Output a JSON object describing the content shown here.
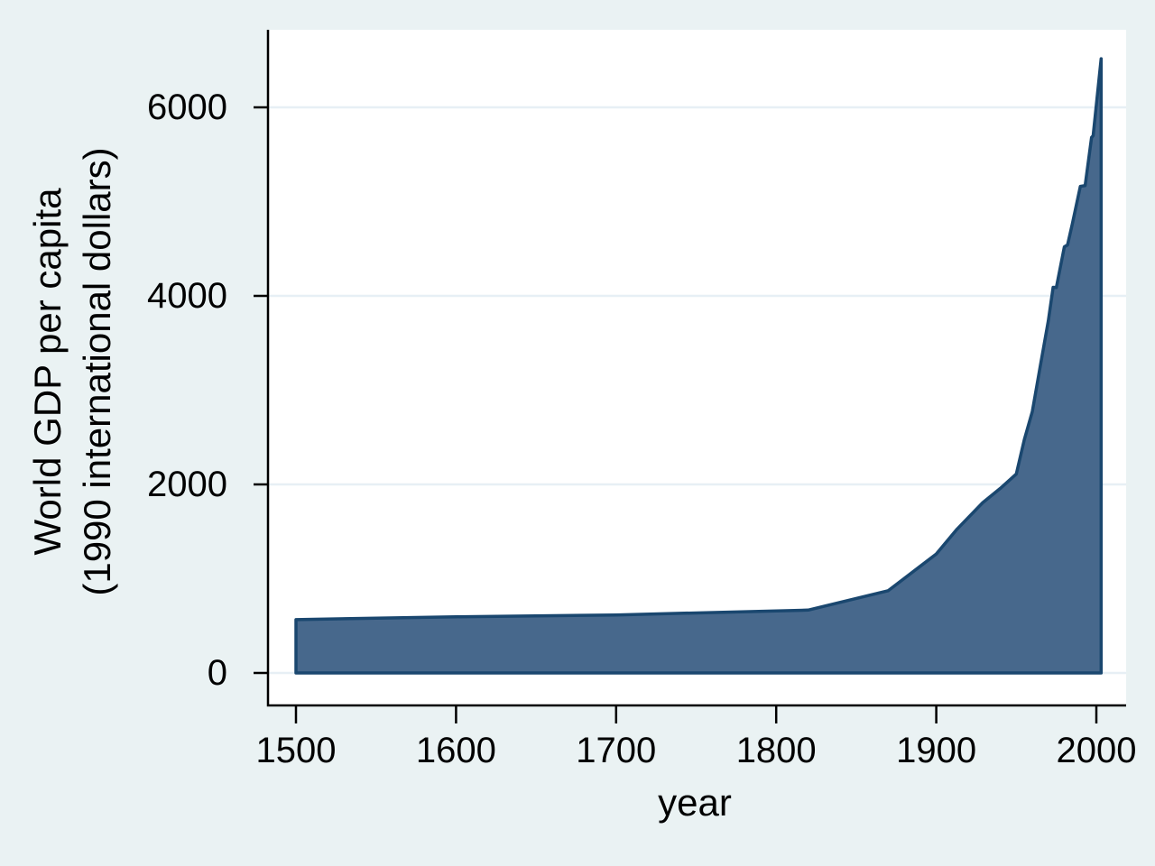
{
  "style": {
    "background": "#eaf2f3",
    "plot_background": "#ffffff",
    "gridline": "#e7eff5",
    "axis_color": "#000000",
    "text_color": "#000000",
    "area_fill": "#47688c",
    "area_stroke": "#1a476f"
  },
  "chart_data": {
    "type": "area",
    "title": "",
    "xlabel": "year",
    "ylabel": [
      "World GDP per capita",
      "(1990 international dollars)"
    ],
    "xticks": [
      1500,
      1600,
      1700,
      1800,
      1900,
      2000
    ],
    "yticks": [
      0,
      2000,
      4000,
      6000
    ],
    "xlim": [
      1483,
      2018
    ],
    "ylim": [
      -345,
      6820
    ],
    "grid": "horizontal-gridlines-only",
    "legend": "none",
    "baseline": 0,
    "series": [
      {
        "name": "World GDP per capita (1990 international dollars)",
        "points": [
          [
            1500,
            566
          ],
          [
            1600,
            596
          ],
          [
            1700,
            615
          ],
          [
            1820,
            667
          ],
          [
            1870,
            873
          ],
          [
            1900,
            1262
          ],
          [
            1913,
            1526
          ],
          [
            1929,
            1806
          ],
          [
            1940,
            1958
          ],
          [
            1950,
            2111
          ],
          [
            1955,
            2475
          ],
          [
            1960,
            2773
          ],
          [
            1965,
            3258
          ],
          [
            1970,
            3736
          ],
          [
            1973,
            4091
          ],
          [
            1975,
            4088
          ],
          [
            1980,
            4520
          ],
          [
            1982,
            4540
          ],
          [
            1985,
            4764
          ],
          [
            1990,
            5162
          ],
          [
            1993,
            5170
          ],
          [
            1997,
            5680
          ],
          [
            1998,
            5700
          ],
          [
            2003,
            6516
          ]
        ]
      }
    ]
  }
}
